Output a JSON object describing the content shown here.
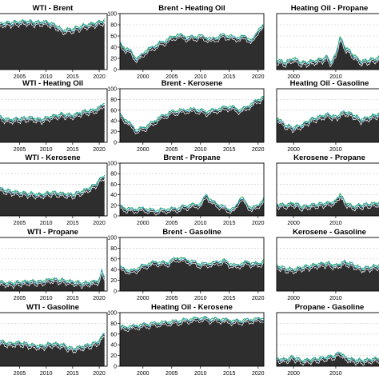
{
  "chart_data": {
    "type": "area",
    "layout": {
      "rows": 5,
      "cols": 3
    },
    "series_colors": {
      "fill": "#2e2e2e",
      "line_a": "#1aa34a",
      "line_b": "#2b9fd0",
      "line_c": "#ffffff"
    },
    "panels": [
      {
        "title": "WTI - Brent",
        "x_ticks": [
          "2005",
          "2010",
          "2015",
          "2020"
        ],
        "xlim": [
          2001,
          2021.5
        ],
        "y_ticks": [],
        "ylim": [
          0,
          100
        ],
        "x": [
          2001,
          2004,
          2006,
          2008,
          2010,
          2012,
          2013,
          2015,
          2017,
          2019,
          2020,
          2021
        ],
        "values": [
          80,
          82,
          84,
          82,
          83,
          76,
          68,
          70,
          76,
          80,
          82,
          86
        ]
      },
      {
        "title": "Brent - Heating Oil",
        "x_ticks": [
          "2000",
          "2005",
          "2010",
          "2015",
          "2020"
        ],
        "xlim": [
          1996,
          2021
        ],
        "y_ticks": [
          "0",
          "20",
          "40",
          "60",
          "80",
          "100"
        ],
        "ylim": [
          0,
          100
        ],
        "x": [
          1996,
          1997,
          1998,
          1999,
          2000,
          2002,
          2004,
          2006,
          2008,
          2010,
          2012,
          2014,
          2016,
          2018,
          2019,
          2020,
          2021
        ],
        "values": [
          45,
          35,
          30,
          15,
          28,
          40,
          50,
          60,
          55,
          58,
          52,
          60,
          55,
          57,
          48,
          70,
          75
        ]
      },
      {
        "title": "Heating Oil - Propane",
        "x_ticks": [
          "2000",
          "2010"
        ],
        "xlim": [
          1996,
          2021
        ],
        "y_ticks": [],
        "ylim": [
          0,
          100
        ],
        "x": [
          1996,
          1998,
          2000,
          2002,
          2004,
          2006,
          2008,
          2009,
          2010,
          2011,
          2012,
          2014,
          2016,
          2018,
          2020,
          2021
        ],
        "values": [
          15,
          10,
          18,
          10,
          12,
          15,
          20,
          10,
          25,
          55,
          40,
          25,
          12,
          15,
          18,
          20
        ]
      },
      {
        "title": "WTI - Heating Oil",
        "x_ticks": [
          "2005",
          "2010",
          "2015",
          "2020"
        ],
        "xlim": [
          2001,
          2021.5
        ],
        "y_ticks": [],
        "ylim": [
          0,
          100
        ],
        "x": [
          2001,
          2003,
          2005,
          2007,
          2009,
          2011,
          2013,
          2015,
          2017,
          2019,
          2020,
          2021
        ],
        "values": [
          45,
          40,
          42,
          44,
          40,
          46,
          50,
          48,
          55,
          58,
          62,
          72
        ]
      },
      {
        "title": "Brent - Kerosene",
        "x_ticks": [
          "2000",
          "2005",
          "2010",
          "2015",
          "2020"
        ],
        "xlim": [
          1996,
          2021
        ],
        "y_ticks": [
          "0",
          "20",
          "40",
          "60",
          "80",
          "100"
        ],
        "ylim": [
          0,
          100
        ],
        "x": [
          1996,
          1997,
          1999,
          2001,
          2003,
          2005,
          2007,
          2009,
          2011,
          2013,
          2015,
          2017,
          2019,
          2020,
          2021
        ],
        "values": [
          50,
          40,
          20,
          30,
          45,
          55,
          58,
          60,
          55,
          60,
          65,
          58,
          70,
          78,
          82
        ]
      },
      {
        "title": "Heating Oil - Gasoline",
        "x_ticks": [
          "2000",
          "2010"
        ],
        "xlim": [
          1996,
          2021
        ],
        "y_ticks": [],
        "ylim": [
          0,
          100
        ],
        "x": [
          1996,
          1998,
          2000,
          2002,
          2004,
          2006,
          2008,
          2010,
          2012,
          2014,
          2016,
          2018,
          2020,
          2021
        ],
        "values": [
          45,
          30,
          25,
          30,
          40,
          45,
          50,
          45,
          55,
          50,
          40,
          45,
          50,
          55
        ]
      },
      {
        "title": "WTI - Kerosene",
        "x_ticks": [
          "2005",
          "2010",
          "2015",
          "2020"
        ],
        "xlim": [
          2001,
          2021.5
        ],
        "y_ticks": [],
        "ylim": [
          0,
          100
        ],
        "x": [
          2001,
          2003,
          2005,
          2007,
          2009,
          2011,
          2013,
          2015,
          2017,
          2019,
          2020,
          2021
        ],
        "values": [
          50,
          45,
          42,
          40,
          38,
          42,
          40,
          38,
          45,
          55,
          65,
          75
        ]
      },
      {
        "title": "Brent - Propane",
        "x_ticks": [
          "2000",
          "2005",
          "2010",
          "2015",
          "2020"
        ],
        "xlim": [
          1996,
          2021
        ],
        "y_ticks": [
          "0",
          "20",
          "40",
          "60",
          "80",
          "100"
        ],
        "ylim": [
          0,
          100
        ],
        "x": [
          1996,
          1998,
          2000,
          2002,
          2004,
          2006,
          2008,
          2010,
          2011,
          2012,
          2014,
          2015,
          2016,
          2017,
          2018,
          2019,
          2020,
          2021
        ],
        "values": [
          15,
          10,
          12,
          8,
          10,
          12,
          18,
          20,
          38,
          25,
          15,
          10,
          12,
          35,
          20,
          12,
          18,
          30
        ]
      },
      {
        "title": "Kerosene - Propane",
        "x_ticks": [
          "2000",
          "2010"
        ],
        "xlim": [
          1996,
          2021
        ],
        "y_ticks": [],
        "ylim": [
          0,
          100
        ],
        "x": [
          1996,
          1998,
          2000,
          2002,
          2004,
          2006,
          2008,
          2010,
          2011,
          2012,
          2014,
          2016,
          2018,
          2020,
          2021
        ],
        "values": [
          20,
          18,
          22,
          15,
          18,
          20,
          22,
          25,
          40,
          25,
          15,
          18,
          20,
          22,
          25
        ]
      },
      {
        "title": "WTI - Propane",
        "x_ticks": [
          "2005",
          "2010",
          "2015",
          "2020"
        ],
        "xlim": [
          2001,
          2021.5
        ],
        "y_ticks": [],
        "ylim": [
          0,
          100
        ],
        "x": [
          2001,
          2003,
          2005,
          2007,
          2009,
          2011,
          2013,
          2015,
          2017,
          2019,
          2020,
          2020.5,
          2021
        ],
        "values": [
          15,
          12,
          14,
          16,
          15,
          20,
          18,
          15,
          12,
          15,
          18,
          35,
          25
        ]
      },
      {
        "title": "Brent - Gasoline",
        "x_ticks": [
          "2000",
          "2005",
          "2010",
          "2015",
          "2020"
        ],
        "xlim": [
          1996,
          2021
        ],
        "y_ticks": [
          "0",
          "20",
          "40",
          "60",
          "80",
          "100"
        ],
        "ylim": [
          0,
          100
        ],
        "x": [
          1996,
          1998,
          2000,
          2002,
          2004,
          2006,
          2008,
          2010,
          2012,
          2014,
          2016,
          2018,
          2020,
          2021
        ],
        "values": [
          42,
          35,
          45,
          52,
          50,
          60,
          55,
          48,
          50,
          55,
          45,
          52,
          48,
          55
        ]
      },
      {
        "title": "Kerosene - Gasoline",
        "x_ticks": [
          "2000",
          "2010"
        ],
        "xlim": [
          1996,
          2021
        ],
        "y_ticks": [],
        "ylim": [
          0,
          100
        ],
        "x": [
          1996,
          1998,
          2000,
          2002,
          2004,
          2006,
          2008,
          2010,
          2012,
          2014,
          2016,
          2018,
          2020,
          2021
        ],
        "values": [
          45,
          40,
          38,
          42,
          45,
          48,
          50,
          45,
          52,
          48,
          40,
          42,
          45,
          50
        ]
      },
      {
        "title": "WTI - Gasoline",
        "x_ticks": [
          "2005",
          "2010",
          "2015",
          "2020"
        ],
        "xlim": [
          2001,
          2021.5
        ],
        "y_ticks": [],
        "ylim": [
          0,
          100
        ],
        "x": [
          2001,
          2003,
          2005,
          2007,
          2009,
          2011,
          2013,
          2015,
          2017,
          2019,
          2020,
          2021
        ],
        "values": [
          45,
          40,
          42,
          38,
          35,
          40,
          38,
          30,
          35,
          40,
          45,
          60
        ]
      },
      {
        "title": "Heating Oil - Kerosene",
        "x_ticks": [
          "2000",
          "2005",
          "2010",
          "2015",
          "2020"
        ],
        "xlim": [
          1996,
          2021
        ],
        "y_ticks": [
          "0",
          "20",
          "40",
          "60",
          "80",
          "100"
        ],
        "ylim": [
          0,
          100
        ],
        "x": [
          1996,
          1998,
          2000,
          2002,
          2004,
          2006,
          2008,
          2010,
          2012,
          2014,
          2016,
          2018,
          2020,
          2021
        ],
        "values": [
          70,
          72,
          75,
          78,
          80,
          82,
          85,
          88,
          86,
          85,
          82,
          84,
          86,
          88
        ]
      },
      {
        "title": "Propane - Gasoline",
        "x_ticks": [
          "2000",
          "2010"
        ],
        "xlim": [
          1996,
          2021
        ],
        "y_ticks": [],
        "ylim": [
          0,
          100
        ],
        "x": [
          1996,
          1998,
          2000,
          2002,
          2004,
          2006,
          2008,
          2010,
          2011,
          2012,
          2014,
          2016,
          2018,
          2020,
          2021
        ],
        "values": [
          12,
          10,
          15,
          8,
          10,
          12,
          15,
          18,
          25,
          15,
          10,
          8,
          10,
          12,
          15
        ]
      }
    ]
  }
}
